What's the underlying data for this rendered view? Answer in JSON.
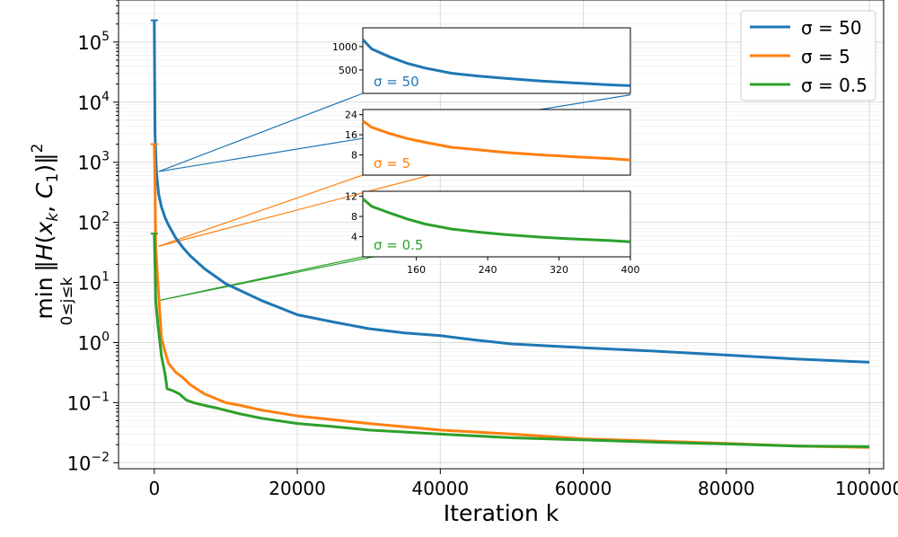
{
  "chart_data": {
    "type": "line",
    "xlabel": "Iteration k",
    "xlim": [
      -5000,
      102000
    ],
    "ylim_log10": [
      -2.1,
      5.7
    ],
    "x_ticks": [
      0,
      20000,
      40000,
      60000,
      80000,
      100000
    ],
    "x_tick_labels": [
      "0",
      "20000",
      "40000",
      "60000",
      "80000",
      "100000"
    ],
    "y_ticks_log10": [
      -2,
      -1,
      0,
      1,
      2,
      3,
      4,
      5
    ],
    "y_tick_labels": [
      "10",
      "10",
      "10",
      "10",
      "10",
      "10",
      "10",
      "10"
    ],
    "y_tick_exps": [
      "−2",
      "−1",
      "0",
      "1",
      "2",
      "3",
      "4",
      "5"
    ],
    "y_scale": "log",
    "grid": true,
    "legend_position": "top-right",
    "series": [
      {
        "name": "σ = 50",
        "color": "#1f77b4",
        "x": [
          0,
          100,
          300,
          600,
          1000,
          1500,
          2000,
          3000,
          4000,
          5000,
          7000,
          10000,
          15000,
          20000,
          25000,
          30000,
          35000,
          40000,
          45000,
          50000,
          60000,
          70000,
          80000,
          90000,
          100000
        ],
        "y": [
          230000,
          3000,
          700,
          300,
          180,
          120,
          90,
          55,
          38,
          28,
          17,
          9.5,
          5,
          2.9,
          2.2,
          1.7,
          1.45,
          1.3,
          1.1,
          0.95,
          0.82,
          0.72,
          0.62,
          0.53,
          0.47
        ]
      },
      {
        "name": "σ = 5",
        "color": "#ff7f0e",
        "x": [
          0,
          100,
          200,
          500,
          1000,
          1500,
          2000,
          3000,
          4000,
          5000,
          7000,
          10000,
          12000,
          15000,
          20000,
          25000,
          30000,
          40000,
          50000,
          60000,
          70000,
          80000,
          90000,
          100000
        ],
        "y": [
          2000,
          500,
          40,
          10,
          1.2,
          0.7,
          0.45,
          0.32,
          0.26,
          0.2,
          0.14,
          0.1,
          0.09,
          0.075,
          0.06,
          0.052,
          0.045,
          0.035,
          0.03,
          0.025,
          0.023,
          0.021,
          0.019,
          0.018
        ]
      },
      {
        "name": "σ = 0.5",
        "color": "#2ca02c",
        "x": [
          0,
          100,
          200,
          500,
          1000,
          1500,
          1800,
          2500,
          3500,
          4500,
          5500,
          7000,
          9000,
          12000,
          15000,
          20000,
          25000,
          30000,
          40000,
          50000,
          60000,
          70000,
          80000,
          90000,
          100000
        ],
        "y": [
          65,
          20,
          5,
          2,
          0.6,
          0.3,
          0.17,
          0.16,
          0.14,
          0.11,
          0.1,
          0.09,
          0.08,
          0.065,
          0.055,
          0.045,
          0.04,
          0.035,
          0.03,
          0.026,
          0.024,
          0.022,
          0.0205,
          0.019,
          0.0185
        ]
      }
    ],
    "insets": [
      {
        "series_index": 0,
        "label": "σ = 50",
        "xlim": [
          100,
          400
        ],
        "ylim": [
          0,
          1400
        ],
        "y_ticks": [
          500,
          1000
        ],
        "y_tick_labels": [
          "500",
          "1000"
        ],
        "x": [
          100,
          110,
          130,
          150,
          170,
          200,
          230,
          260,
          300,
          340,
          380,
          400
        ],
        "y": [
          1150,
          950,
          780,
          640,
          540,
          430,
          370,
          320,
          265,
          220,
          180,
          165
        ]
      },
      {
        "series_index": 1,
        "label": "σ = 5",
        "xlim": [
          100,
          400
        ],
        "ylim": [
          0,
          26
        ],
        "y_ticks": [
          8,
          16,
          24
        ],
        "y_tick_labels": [
          "8",
          "16",
          "24"
        ],
        "x": [
          100,
          110,
          130,
          150,
          170,
          200,
          230,
          260,
          300,
          340,
          380,
          400
        ],
        "y": [
          21.5,
          19,
          16.5,
          14.5,
          13,
          11,
          10,
          9,
          8,
          7.2,
          6.5,
          6
        ]
      },
      {
        "series_index": 2,
        "label": "σ = 0.5",
        "xlim": [
          100,
          400
        ],
        "ylim": [
          0,
          13
        ],
        "y_ticks": [
          4,
          8,
          12
        ],
        "y_tick_labels": [
          "4",
          "8",
          "12"
        ],
        "x": [
          100,
          110,
          130,
          150,
          170,
          200,
          230,
          260,
          300,
          340,
          380,
          400
        ],
        "y": [
          11.5,
          10,
          8.7,
          7.5,
          6.5,
          5.5,
          4.9,
          4.4,
          3.9,
          3.5,
          3.2,
          3
        ]
      }
    ],
    "inset_x_ticks": [
      160,
      240,
      320,
      400
    ],
    "inset_x_tick_labels": [
      "160",
      "240",
      "320",
      "400"
    ]
  }
}
